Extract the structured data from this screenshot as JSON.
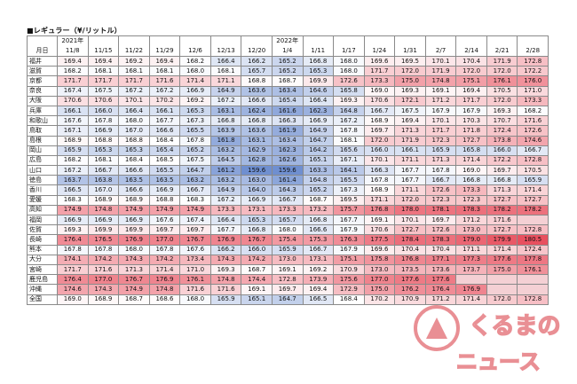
{
  "title": "■レギュラー（¥/リットル）",
  "header_row1": [
    "",
    "2021年",
    "",
    "",
    "",
    "",
    "",
    "",
    "2022年",
    "",
    "",
    "",
    "",
    "",
    "",
    "",
    ""
  ],
  "header_row2": [
    "月日",
    "11/8",
    "11/15",
    "11/22",
    "11/29",
    "12/6",
    "12/13",
    "12/20",
    "1/4",
    "1/11",
    "1/17",
    "1/24",
    "1/31",
    "2/7",
    "2/14",
    "2/21",
    "2/28"
  ],
  "rows": [
    {
      "name": "福井",
      "values": [
        169.4,
        169.4,
        169.2,
        169.4,
        168.2,
        166.4,
        166.2,
        165.2,
        166.8,
        168.0,
        169.6,
        169.5,
        170.1,
        170.4,
        171.9,
        172.8
      ]
    },
    {
      "name": "滋賀",
      "values": [
        168.2,
        168.1,
        168.1,
        168.1,
        168.0,
        168.1,
        165.7,
        165.2,
        165.3,
        168.0,
        171.7,
        172.0,
        171.9,
        172.0,
        172.0,
        172.2
      ]
    },
    {
      "name": "京都",
      "values": [
        171.7,
        171.7,
        171.7,
        171.6,
        171.4,
        171.1,
        168.8,
        168.7,
        169.9,
        172.6,
        173.3,
        175.0,
        174.8,
        175.1,
        176.1,
        176.0
      ]
    },
    {
      "name": "奈良",
      "values": [
        167.4,
        167.5,
        167.2,
        167.2,
        166.9,
        164.9,
        163.6,
        163.4,
        164.6,
        165.8,
        169.0,
        169.3,
        169.1,
        169.4,
        170.5,
        171.0
      ]
    },
    {
      "name": "大阪",
      "values": [
        170.6,
        170.6,
        170.1,
        170.2,
        169.2,
        167.2,
        166.6,
        165.4,
        166.4,
        169.3,
        170.6,
        172.1,
        171.2,
        171.7,
        172.0,
        173.3
      ]
    },
    {
      "name": "兵庫",
      "values": [
        166.1,
        166.0,
        166.4,
        166.1,
        165.3,
        163.1,
        162.4,
        161.6,
        162.3,
        164.8,
        166.7,
        167.5,
        167.9,
        167.9,
        169.3,
        168.2
      ]
    },
    {
      "name": "和歌山",
      "values": [
        167.6,
        167.8,
        168.0,
        167.7,
        167.3,
        166.8,
        166.8,
        166.3,
        166.9,
        167.2,
        168.9,
        169.4,
        170.1,
        170.3,
        170.7,
        171.6
      ]
    },
    {
      "name": "鳥取",
      "values": [
        167.1,
        166.9,
        167.0,
        166.6,
        165.5,
        163.9,
        163.6,
        161.9,
        164.9,
        167.8,
        169.7,
        171.3,
        171.7,
        171.8,
        172.4,
        172.6
      ]
    },
    {
      "name": "島根",
      "values": [
        168.9,
        168.8,
        168.8,
        168.4,
        167.8,
        161.8,
        163.1,
        163.4,
        164.7,
        168.1,
        172.0,
        171.9,
        172.3,
        172.7,
        173.8,
        174.6
      ]
    },
    {
      "name": "岡山",
      "values": [
        165.9,
        165.3,
        165.3,
        165.4,
        165.2,
        163.2,
        162.9,
        162.3,
        164.2,
        165.6,
        166.0,
        166.1,
        165.9,
        165.8,
        166.0,
        166.7
      ]
    },
    {
      "name": "広島",
      "values": [
        168.2,
        168.1,
        168.4,
        168.5,
        167.5,
        164.5,
        162.8,
        162.6,
        165.1,
        167.1,
        170.1,
        171.1,
        171.3,
        171.4,
        172.2,
        172.8
      ]
    },
    {
      "name": "山口",
      "values": [
        167.2,
        166.7,
        166.6,
        165.5,
        164.7,
        161.2,
        159.6,
        159.6,
        163.3,
        164.1,
        166.3,
        167.7,
        167.8,
        169.0,
        169.7,
        170.5
      ]
    },
    {
      "name": "徳島",
      "values": [
        163.7,
        163.8,
        163.5,
        163.5,
        163.2,
        163.2,
        163.0,
        161.4,
        164.8,
        165.5,
        167.8,
        167.7,
        166.7,
        166.8,
        166.8,
        165.9
      ]
    },
    {
      "name": "香川",
      "values": [
        166.5,
        167.0,
        166.6,
        166.9,
        166.7,
        164.9,
        164.0,
        164.3,
        165.2,
        167.3,
        168.9,
        171.1,
        172.6,
        173.3,
        171.3,
        171.4
      ]
    },
    {
      "name": "愛媛",
      "values": [
        168.3,
        168.9,
        168.9,
        168.8,
        168.3,
        167.2,
        166.9,
        166.7,
        168.7,
        169.5,
        171.1,
        172.0,
        172.3,
        172.3,
        172.7,
        172.7
      ]
    },
    {
      "name": "高知",
      "values": [
        174.9,
        174.8,
        174.9,
        174.9,
        174.9,
        173.3,
        173.1,
        173.3,
        173.2,
        175.7,
        176.8,
        178.0,
        178.1,
        178.3,
        178.2,
        178.2
      ]
    },
    {
      "name": "福岡",
      "values": [
        166.9,
        166.9,
        166.9,
        167.6,
        167.4,
        166.4,
        165.3,
        165.7,
        166.8,
        167.7,
        169.1,
        170.1,
        169.7,
        171.2,
        171.6,
        null
      ]
    },
    {
      "name": "佐賀",
      "values": [
        169.3,
        169.9,
        169.9,
        169.7,
        169.7,
        167.7,
        166.8,
        168.0,
        166.6,
        167.9,
        170.6,
        172.7,
        172.6,
        173.0,
        172.7,
        172.8
      ]
    },
    {
      "name": "長崎",
      "values": [
        176.4,
        176.5,
        176.9,
        177.0,
        176.7,
        176.9,
        176.7,
        175.4,
        175.3,
        176.3,
        177.5,
        178.4,
        178.3,
        179.0,
        179.9,
        180.5
      ]
    },
    {
      "name": "熊本",
      "values": [
        167.8,
        167.8,
        168.0,
        167.8,
        167.6,
        166.2,
        166.0,
        165.9,
        166.7,
        167.9,
        169.6,
        170.4,
        170.4,
        171.1,
        171.4,
        172.4
      ]
    },
    {
      "name": "大分",
      "values": [
        174.1,
        174.2,
        174.3,
        174.2,
        173.4,
        174.3,
        174.2,
        173.0,
        173.1,
        175.1,
        175.8,
        176.8,
        177.1,
        177.3,
        177.6,
        177.8
      ]
    },
    {
      "name": "宮崎",
      "values": [
        171.7,
        171.6,
        171.3,
        171.4,
        171.0,
        169.3,
        168.7,
        169.1,
        169.2,
        170.9,
        173.0,
        173.5,
        173.6,
        173.7,
        175.0,
        176.1
      ]
    },
    {
      "name": "鹿児島",
      "values": [
        176.4,
        177.0,
        176.7,
        176.9,
        176.1,
        174.8,
        174.4,
        172.8,
        173.9,
        175.6,
        177.0,
        177.6,
        177.6,
        null,
        null,
        null
      ]
    },
    {
      "name": "沖縄",
      "values": [
        174.6,
        174.3,
        174.9,
        174.8,
        171.6,
        171.6,
        169.1,
        169.7,
        169.4,
        172.9,
        175.0,
        176.2,
        176.4,
        176.9,
        null,
        null
      ]
    },
    {
      "name": "全国",
      "values": [
        169.0,
        168.9,
        168.7,
        168.6,
        168.0,
        165.9,
        165.1,
        164.7,
        166.5,
        168.4,
        170.2,
        170.9,
        171.2,
        171.4,
        172.0,
        172.8
      ]
    }
  ],
  "color_scale": {
    "low": "#6f8fd0",
    "mid": "#ffffff",
    "high": "#e8505f"
  },
  "watermark": {
    "line1": "くるまの",
    "line2": "ニュース",
    "color": "#d8343e"
  }
}
